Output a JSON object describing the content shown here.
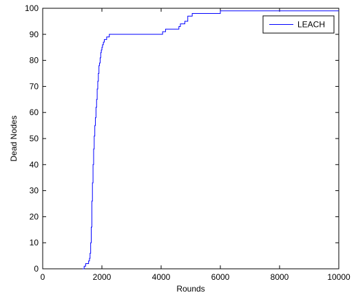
{
  "chart_data": {
    "type": "line",
    "title": "",
    "xlabel": "Rounds",
    "ylabel": "Dead Nodes",
    "xlim": [
      0,
      10000
    ],
    "ylim": [
      0,
      100
    ],
    "xticks": [
      "0",
      "2000",
      "4000",
      "6000",
      "8000",
      "10000"
    ],
    "yticks": [
      "0",
      "10",
      "20",
      "30",
      "40",
      "50",
      "60",
      "70",
      "80",
      "90",
      "100"
    ],
    "grid": false,
    "legend": {
      "position": "top-right",
      "entries": [
        "LEACH"
      ]
    },
    "series": [
      {
        "name": "LEACH",
        "color": "#0000ff",
        "step": true,
        "x": [
          1350,
          1400,
          1450,
          1500,
          1550,
          1580,
          1600,
          1620,
          1640,
          1660,
          1680,
          1700,
          1720,
          1740,
          1760,
          1780,
          1800,
          1820,
          1840,
          1860,
          1880,
          1900,
          1920,
          1940,
          1960,
          1980,
          2000,
          2020,
          2050,
          2080,
          2120,
          2160,
          2200,
          2250,
          2300,
          4050,
          4100,
          4150,
          4200,
          4550,
          4600,
          4650,
          4700,
          4800,
          4900,
          5000,
          5050,
          5900,
          6000,
          10000
        ],
        "y": [
          0,
          1,
          2,
          2,
          3,
          4,
          6,
          10,
          16,
          26,
          33,
          40,
          46,
          51,
          55,
          58,
          62,
          65,
          69,
          72,
          75,
          78,
          79,
          81,
          83,
          84,
          85,
          86,
          87,
          88,
          88,
          89,
          89,
          90,
          90,
          91,
          91,
          92,
          92,
          92,
          93,
          94,
          94,
          95,
          97,
          97,
          98,
          98,
          99,
          99
        ]
      }
    ]
  }
}
